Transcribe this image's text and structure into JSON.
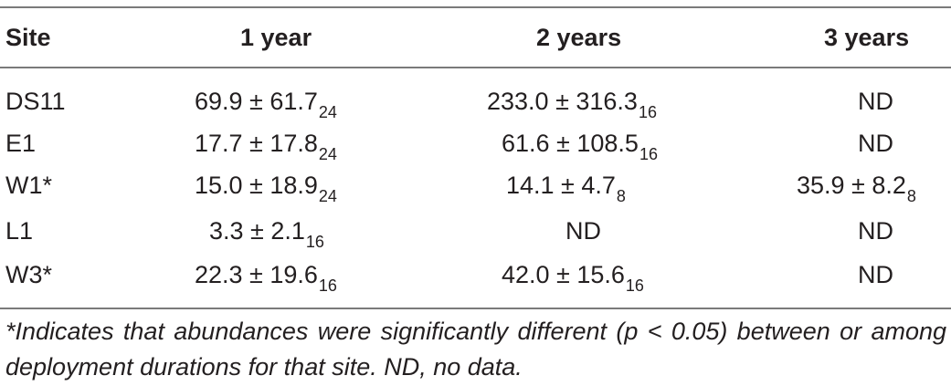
{
  "table": {
    "headers": [
      "Site",
      "1 year",
      "2 years",
      "3 years"
    ],
    "rows": [
      {
        "site": "DS11",
        "y1": {
          "v": "69.9 ± 61.7",
          "n": "24"
        },
        "y2": {
          "v": "233.0 ± 316.3",
          "n": "16"
        },
        "y3": {
          "v": "ND",
          "n": ""
        }
      },
      {
        "site": "E1",
        "y1": {
          "v": "17.7 ± 17.8",
          "n": "24"
        },
        "y2": {
          "v": "61.6 ± 108.5",
          "n": "16"
        },
        "y3": {
          "v": "ND",
          "n": ""
        }
      },
      {
        "site": "W1*",
        "y1": {
          "v": "15.0 ± 18.9",
          "n": "24"
        },
        "y2": {
          "v": "14.1 ± 4.7",
          "n": "8"
        },
        "y3": {
          "v": "35.9 ± 8.2",
          "n": "8"
        }
      },
      {
        "site": "L1",
        "y1": {
          "v": "3.3 ± 2.1",
          "n": "16"
        },
        "y2": {
          "v": "ND",
          "n": ""
        },
        "y3": {
          "v": "ND",
          "n": ""
        }
      },
      {
        "site": "W3*",
        "y1": {
          "v": "22.3 ± 19.6",
          "n": "16"
        },
        "y2": {
          "v": "42.0 ± 15.6",
          "n": "16"
        },
        "y3": {
          "v": "ND",
          "n": ""
        }
      }
    ]
  },
  "footnote": "*Indicates that abundances were significantly different (p < 0.05) between or among deployment durations for that site. ND, no data."
}
